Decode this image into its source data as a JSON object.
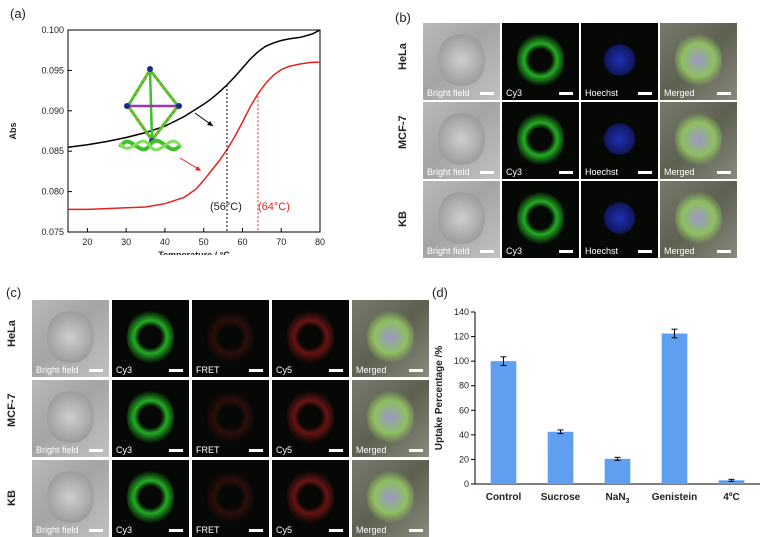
{
  "panels": {
    "a": "(a)",
    "b": "(b)",
    "c": "(c)",
    "d": "(d)"
  },
  "panel_a": {
    "annotation_left": "(56°C)",
    "annotation_right": "(64°C)",
    "colors": {
      "upper_curve": "#000000",
      "lower_curve": "#e8211f",
      "helix": "#3fbf2e"
    }
  },
  "panel_b": {
    "rows": [
      "HeLa",
      "MCF-7",
      "KB"
    ],
    "columns": [
      "Bright field",
      "Cy3",
      "Hoechst",
      "Merged"
    ]
  },
  "panel_c": {
    "rows": [
      "HeLa",
      "MCF-7",
      "KB"
    ],
    "columns": [
      "Bright field",
      "Cy3",
      "FRET",
      "Cy5",
      "Merged"
    ]
  },
  "chart_data": [
    {
      "type": "line",
      "xlabel": "Temperature / °C",
      "ylabel": "Abs",
      "xlim": [
        15,
        80
      ],
      "ylim": [
        0.075,
        0.1
      ],
      "xticks": [
        20,
        30,
        40,
        50,
        60,
        70,
        80
      ],
      "yticks": [
        0.075,
        0.08,
        0.085,
        0.09,
        0.095,
        0.1
      ],
      "ytick_labels": [
        "0.075",
        "0.080",
        "0.085",
        "0.090",
        "0.095",
        "0.100"
      ],
      "series": [
        {
          "color": "#000000",
          "x": [
            15,
            20,
            25,
            30,
            35,
            40,
            45,
            50,
            52,
            54,
            56,
            58,
            60,
            62,
            64,
            66,
            68,
            70,
            72,
            75,
            78,
            80
          ],
          "y": [
            0.0855,
            0.0858,
            0.0862,
            0.0867,
            0.0873,
            0.0881,
            0.0893,
            0.0908,
            0.0915,
            0.0923,
            0.0932,
            0.0942,
            0.0953,
            0.0964,
            0.0973,
            0.098,
            0.0984,
            0.0987,
            0.0989,
            0.0991,
            0.0995,
            0.1
          ]
        },
        {
          "color": "#e8211f",
          "x": [
            15,
            20,
            25,
            30,
            35,
            40,
            45,
            48,
            50,
            52,
            54,
            56,
            58,
            60,
            62,
            64,
            66,
            68,
            70,
            72,
            75,
            78,
            80
          ],
          "y": [
            0.0778,
            0.0778,
            0.0779,
            0.078,
            0.0781,
            0.0785,
            0.0793,
            0.0803,
            0.0814,
            0.0826,
            0.0838,
            0.0852,
            0.0868,
            0.0886,
            0.0905,
            0.0921,
            0.0934,
            0.0944,
            0.0951,
            0.0955,
            0.0958,
            0.096,
            0.096
          ]
        }
      ],
      "markers": [
        56,
        64
      ]
    },
    {
      "type": "bar",
      "ylabel": "Uptake Percentage /%",
      "ylim": [
        0,
        140
      ],
      "yticks": [
        0,
        20,
        40,
        60,
        80,
        100,
        120,
        140
      ],
      "categories": [
        "Control",
        "Sucrose",
        "NaN3",
        "Genistein",
        "4ºC"
      ],
      "values": [
        100,
        42.5,
        20.5,
        122.5,
        3
      ],
      "errors": [
        3.5,
        1.5,
        1.2,
        3.5,
        0.8
      ],
      "bar_color": "#5f9ff0"
    }
  ]
}
